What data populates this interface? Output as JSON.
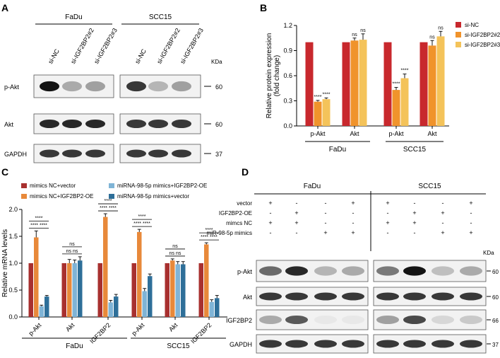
{
  "panels": {
    "A": {
      "label": "A",
      "groups": [
        "FaDu",
        "SCC15"
      ],
      "lanes": [
        "si-NC",
        "si-IGF2BP2#2",
        "si-IGF2BP2#3",
        "si-NC",
        "si-IGF2BP2#2",
        "si-IGF2BP2#3"
      ],
      "rows": [
        "p-Akt",
        "Akt",
        "GAPDH"
      ],
      "kda_label": "KDa",
      "kda": [
        "60",
        "60",
        "37"
      ],
      "intensity": [
        [
          1.0,
          0.5,
          0.55,
          0.9,
          0.45,
          0.55
        ],
        [
          0.95,
          0.95,
          0.95,
          0.9,
          0.9,
          0.9
        ],
        [
          0.9,
          0.9,
          0.9,
          0.9,
          0.9,
          0.9
        ]
      ]
    },
    "B": {
      "label": "B"
    },
    "C": {
      "label": "C"
    },
    "D": {
      "label": "D",
      "groups": [
        "FaDu",
        "SCC15"
      ],
      "conditions": [
        {
          "name": "vector",
          "signs": [
            "+",
            "-",
            "-",
            "+",
            "+",
            "-",
            "-",
            "+"
          ]
        },
        {
          "name": "IGF2BP2-OE",
          "signs": [
            "-",
            "+",
            "-",
            "-",
            "-",
            "+",
            "+",
            "-"
          ]
        },
        {
          "name": "mimcs NC",
          "signs": [
            "+",
            "+",
            "-",
            "-",
            "+",
            "+",
            "-",
            "-"
          ]
        },
        {
          "name": "miR-98-5p mimics",
          "signs": [
            "-",
            "-",
            "+",
            "+",
            "-",
            "-",
            "+",
            "+"
          ]
        }
      ],
      "rows": [
        "p-Akt",
        "Akt",
        "IGF2BP2",
        "GAPDH"
      ],
      "kda_label": "KDa",
      "kda": [
        "60",
        "60",
        "66",
        "37"
      ],
      "intensity": [
        [
          0.75,
          0.95,
          0.45,
          0.5,
          0.7,
          1.0,
          0.4,
          0.5
        ],
        [
          0.9,
          0.9,
          0.9,
          0.9,
          0.9,
          0.9,
          0.9,
          0.9
        ],
        [
          0.5,
          0.8,
          0.1,
          0.1,
          0.55,
          0.85,
          0.25,
          0.35
        ],
        [
          0.9,
          0.9,
          0.9,
          0.9,
          0.9,
          0.9,
          0.9,
          0.9
        ]
      ]
    }
  },
  "chart_data": [
    {
      "panel": "B",
      "type": "bar",
      "ylabel": "Relative protein expression\n(fold change)",
      "xlabel": "",
      "ylim": [
        0,
        1.2
      ],
      "yticks": [
        "0.0",
        "0.3",
        "0.6",
        "0.9",
        "1.2"
      ],
      "categories": [
        "p-Akt",
        "Akt",
        "p-Akt",
        "Akt"
      ],
      "groups": [
        "FaDu",
        "SCC15"
      ],
      "series": [
        {
          "name": "si-NC",
          "color": "#c8282d",
          "values": [
            1.0,
            1.0,
            1.0,
            1.0
          ],
          "err": [
            0,
            0,
            0,
            0
          ],
          "sig": [
            "",
            "",
            "",
            ""
          ]
        },
        {
          "name": "si-IGF2BP2#2",
          "color": "#f0932b",
          "values": [
            0.29,
            1.02,
            0.43,
            0.96
          ],
          "err": [
            0.015,
            0.03,
            0.03,
            0.06
          ],
          "sig": [
            "****",
            "ns",
            "****",
            "ns"
          ]
        },
        {
          "name": "si-IGF2BP2#3",
          "color": "#f4c35a",
          "values": [
            0.32,
            1.03,
            0.57,
            1.07
          ],
          "err": [
            0.015,
            0.07,
            0.05,
            0.06
          ],
          "sig": [
            "****",
            "ns",
            "****",
            "ns"
          ]
        }
      ],
      "legend_position": "top-right"
    },
    {
      "panel": "C",
      "type": "bar",
      "ylabel": "Relative mRNA levels",
      "xlabel": "",
      "ylim": [
        0,
        2.0
      ],
      "yticks": [
        "0.0",
        "0.5",
        "1.0",
        "1.5",
        "2.0"
      ],
      "categories": [
        "p-Akt",
        "Akt",
        "IGF2BP2",
        "p-Akt",
        "Akt",
        "IGF2BP2"
      ],
      "groups": [
        "FaDu",
        "SCC15"
      ],
      "series": [
        {
          "name": "mimics NC+vector",
          "color": "#a8302f",
          "values": [
            1.0,
            1.0,
            1.0,
            1.0,
            1.0,
            1.0
          ],
          "err": [
            0,
            0,
            0,
            0,
            0,
            0
          ]
        },
        {
          "name": "mimics NC+IGF2BP2-OE",
          "color": "#e8893a",
          "values": [
            1.48,
            1.0,
            1.86,
            1.58,
            1.05,
            1.35
          ],
          "err": [
            0.12,
            0.07,
            0.06,
            0.05,
            0.03,
            0.03
          ]
        },
        {
          "name": "miRNA-98-5p mimics+IGF2BP2-OE",
          "color": "#7fb4d6",
          "values": [
            0.2,
            1.0,
            0.27,
            0.48,
            0.98,
            0.28
          ],
          "err": [
            0.02,
            0.06,
            0.04,
            0.05,
            0.05,
            0.04
          ]
        },
        {
          "name": "miRNA-98-5p mimics+vector",
          "color": "#2e6f99",
          "values": [
            0.38,
            1.05,
            0.38,
            0.76,
            0.98,
            0.35
          ],
          "err": [
            0.02,
            0.07,
            0.04,
            0.04,
            0.05,
            0.05
          ]
        }
      ],
      "sig_brackets": [
        {
          "cat": 0,
          "rows": [
            "****",
            "**** ****"
          ]
        },
        {
          "cat": 1,
          "rows": [
            "ns",
            "ns  ns"
          ]
        },
        {
          "cat": 2,
          "rows": [
            "****",
            "**** ****"
          ]
        },
        {
          "cat": 3,
          "rows": [
            "****",
            "**** ****"
          ]
        },
        {
          "cat": 4,
          "rows": [
            "ns",
            "ns  ns"
          ]
        },
        {
          "cat": 5,
          "rows": [
            "****",
            "**** ****"
          ]
        }
      ],
      "legend_position": "top"
    }
  ]
}
